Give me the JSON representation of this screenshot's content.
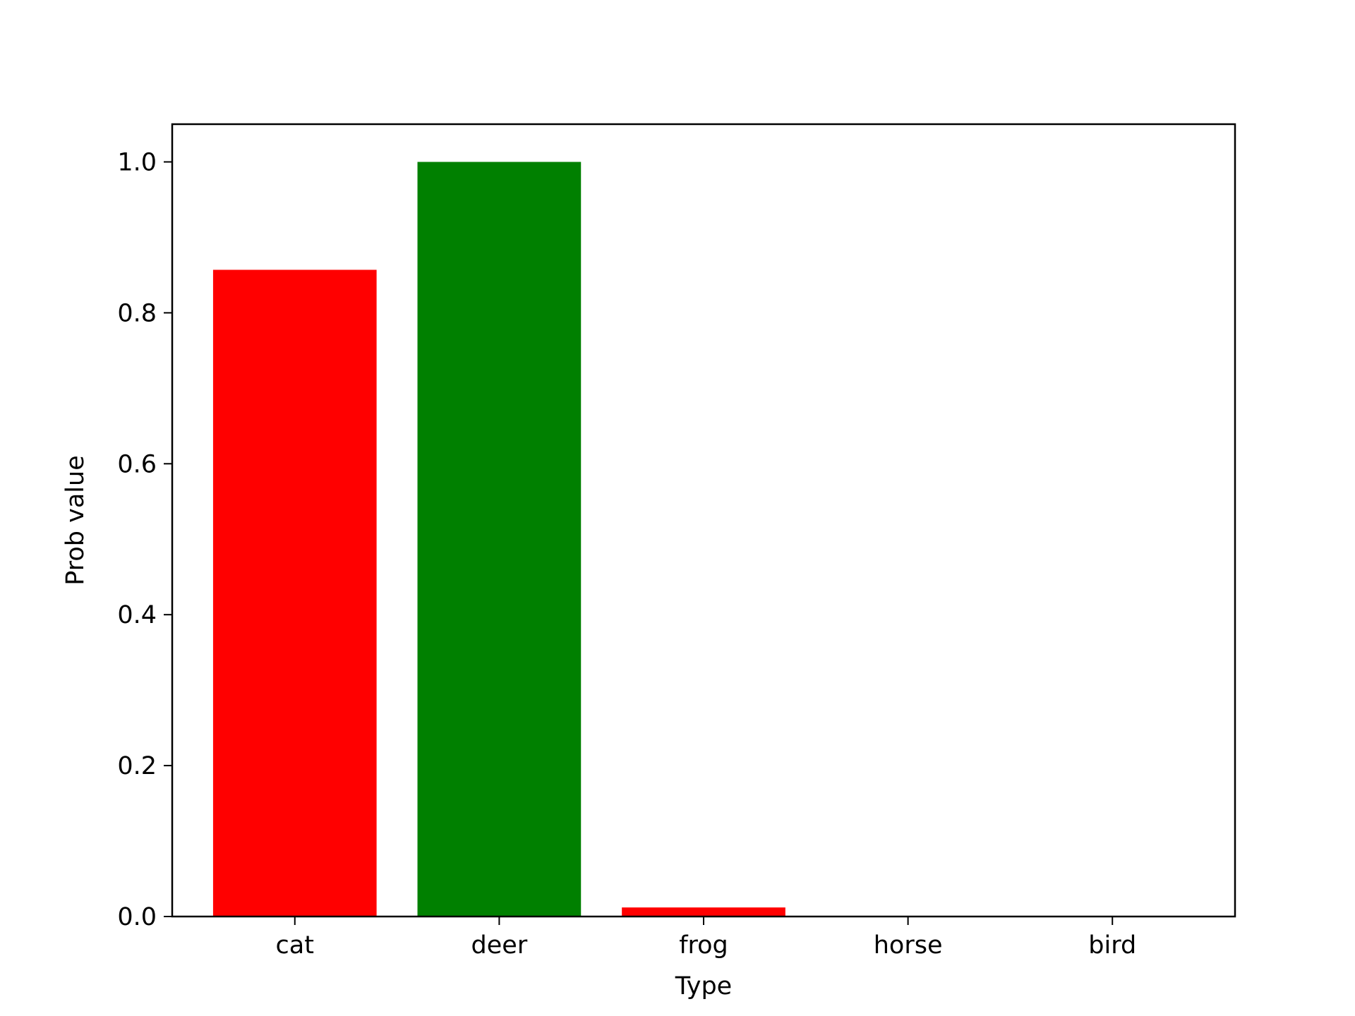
{
  "chart_data": {
    "type": "bar",
    "title": "",
    "xlabel": "Type",
    "ylabel": "Prob value",
    "categories": [
      "cat",
      "deer",
      "frog",
      "horse",
      "bird"
    ],
    "values": [
      0.857,
      1.0,
      0.012,
      0.0,
      0.0
    ],
    "bar_colors": [
      "#ff0000",
      "#008000",
      "#ff0000",
      "#ff0000",
      "#ff0000"
    ],
    "ylim": [
      0,
      1.05
    ],
    "yticks": [
      0.0,
      0.2,
      0.4,
      0.6,
      0.8,
      1.0
    ],
    "ytick_labels": [
      "0.0",
      "0.2",
      "0.4",
      "0.6",
      "0.8",
      "1.0"
    ],
    "grid": false,
    "legend": "none"
  }
}
